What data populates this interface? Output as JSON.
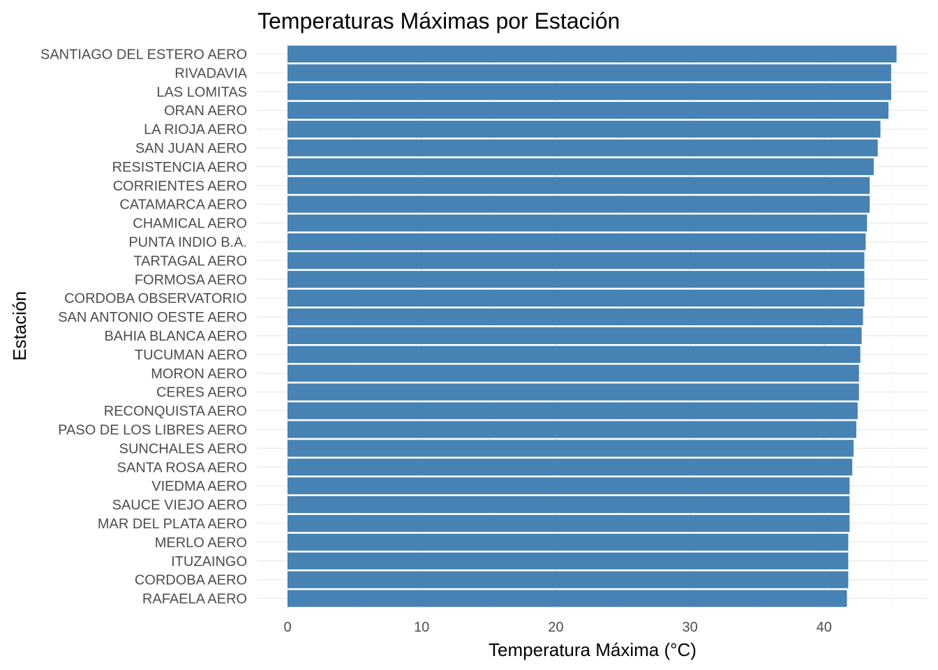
{
  "chart_data": {
    "type": "bar",
    "orientation": "horizontal",
    "title": "Temperaturas Máximas por Estación",
    "xlabel": "Temperatura Máxima (°C)",
    "ylabel": "Estación",
    "xlim": [
      0,
      47
    ],
    "xticks": [
      0,
      10,
      20,
      30,
      40
    ],
    "grid": true,
    "bar_color": "#4682B4",
    "categories": [
      "SANTIAGO DEL ESTERO AERO",
      "RIVADAVIA",
      "LAS LOMITAS",
      "ORAN AERO",
      "LA RIOJA AERO",
      "SAN JUAN AERO",
      "RESISTENCIA AERO",
      "CORRIENTES AERO",
      "CATAMARCA AERO",
      "CHAMICAL AERO",
      "PUNTA INDIO B.A.",
      "TARTAGAL AERO",
      "FORMOSA AERO",
      "CORDOBA OBSERVATORIO",
      "SAN ANTONIO OESTE AERO",
      "BAHIA BLANCA AERO",
      "TUCUMAN AERO",
      "MORON AERO",
      "CERES AERO",
      "RECONQUISTA AERO",
      "PASO DE LOS LIBRES AERO",
      "SUNCHALES AERO",
      "SANTA ROSA AERO",
      "VIEDMA AERO",
      "SAUCE VIEJO AERO",
      "MAR DEL PLATA AERO",
      "MERLO AERO",
      "ITUZAINGO",
      "CORDOBA AERO",
      "RAFAELA AERO"
    ],
    "values": [
      45.4,
      45.0,
      45.0,
      44.8,
      44.2,
      44.0,
      43.7,
      43.4,
      43.4,
      43.2,
      43.1,
      43.0,
      43.0,
      43.0,
      42.9,
      42.8,
      42.7,
      42.6,
      42.6,
      42.5,
      42.4,
      42.2,
      42.1,
      41.9,
      41.9,
      41.9,
      41.8,
      41.8,
      41.8,
      41.7
    ]
  }
}
